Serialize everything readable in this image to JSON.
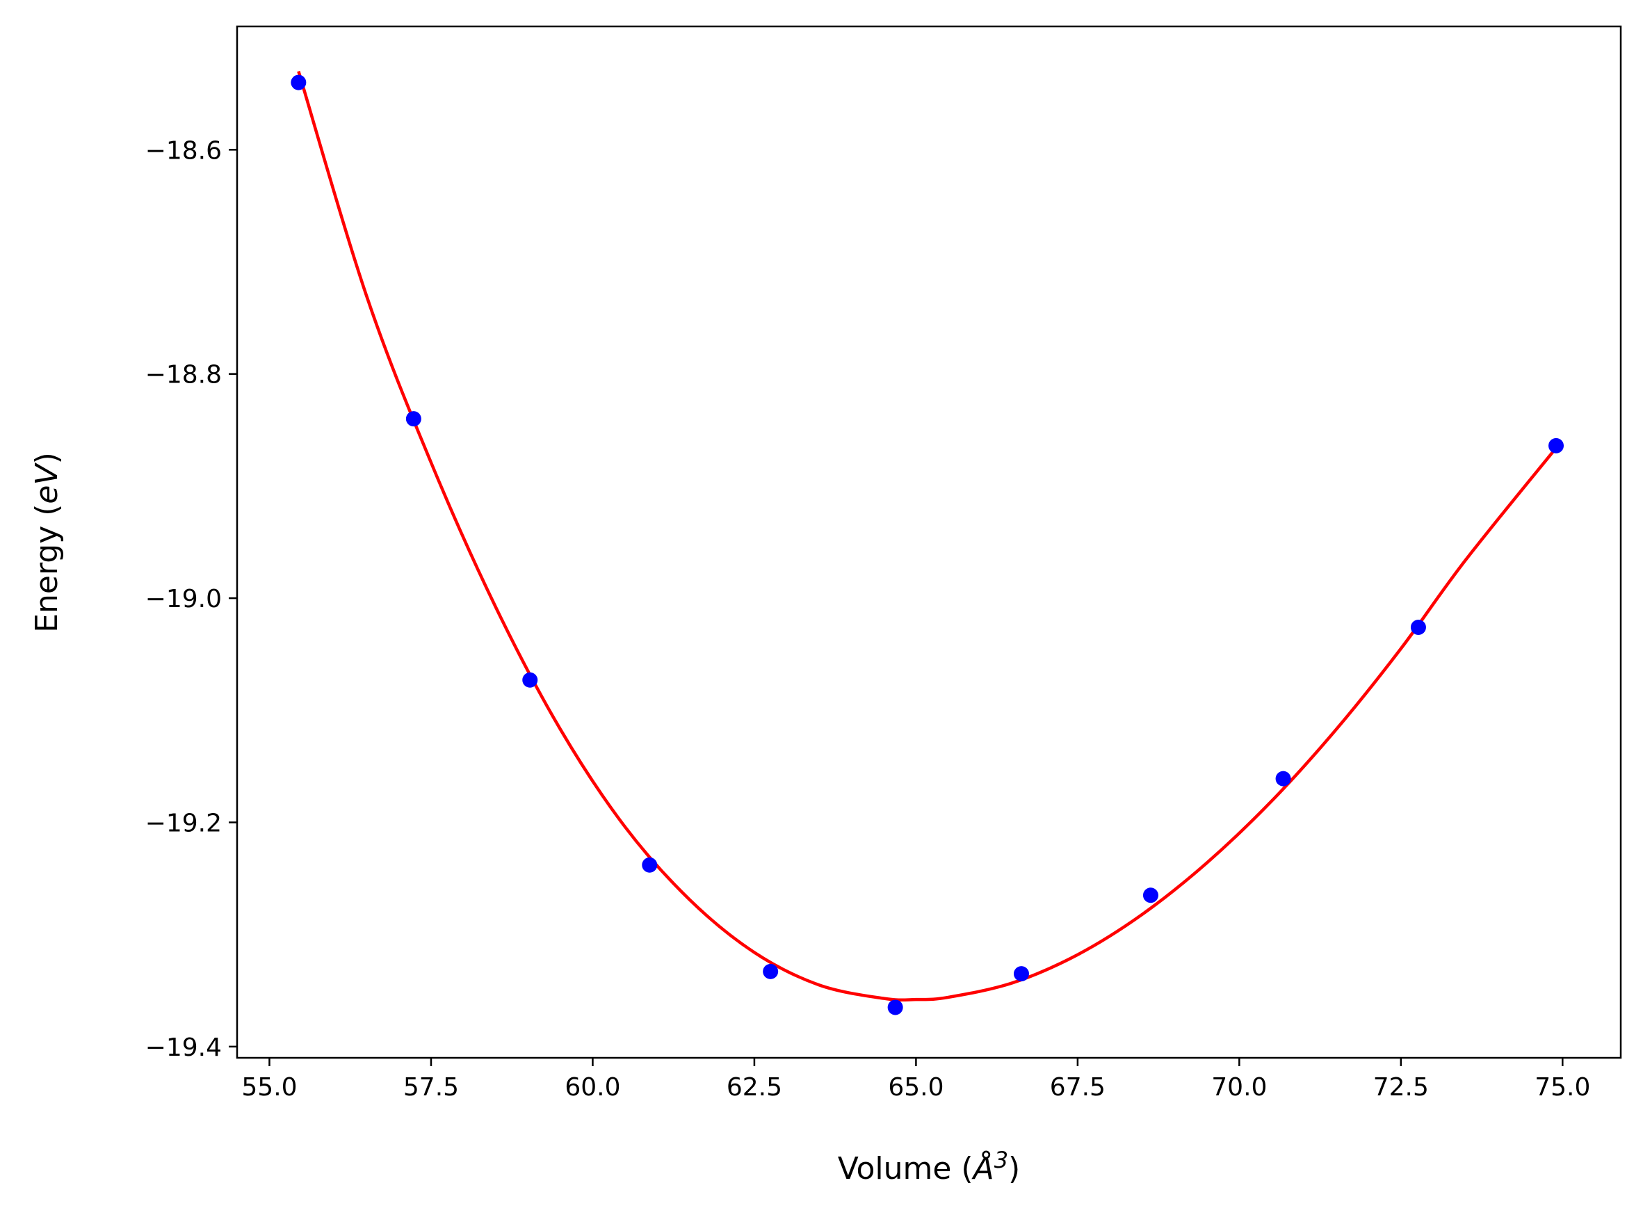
{
  "chart_data": {
    "type": "scatter",
    "title": "",
    "xlabel": {
      "pre": "Volume (",
      "math": "Å",
      "sup": "3",
      "post": ")"
    },
    "ylabel": {
      "pre": "Energy (",
      "math": "eV",
      "post": ")"
    },
    "xlim": [
      54.5,
      75.9
    ],
    "ylim": [
      -19.41,
      -18.49
    ],
    "xticks": [
      55.0,
      57.5,
      60.0,
      62.5,
      65.0,
      67.5,
      70.0,
      72.5,
      75.0
    ],
    "xtick_labels": [
      "55.0",
      "57.5",
      "60.0",
      "62.5",
      "65.0",
      "67.5",
      "70.0",
      "72.5",
      "75.0"
    ],
    "yticks": [
      -18.6,
      -18.8,
      -19.0,
      -19.2,
      -19.4
    ],
    "ytick_labels": [
      "−18.6",
      "−18.8",
      "−19.0",
      "−19.2",
      "−19.4"
    ],
    "grid": false,
    "series": [
      {
        "kind": "points",
        "color": "#0000ff",
        "x": [
          55.45,
          57.23,
          59.03,
          60.88,
          62.75,
          64.68,
          66.63,
          68.63,
          70.68,
          72.77,
          74.9
        ],
        "y": [
          -18.54,
          -18.84,
          -19.073,
          -19.238,
          -19.333,
          -19.365,
          -19.335,
          -19.265,
          -19.161,
          -19.026,
          -18.864
        ]
      },
      {
        "kind": "fit",
        "color": "#ff0000",
        "x": [
          55.45,
          56.5,
          57.5,
          58.5,
          59.5,
          60.5,
          61.5,
          62.5,
          63.5,
          64.5,
          65.0,
          65.5,
          66.5,
          67.5,
          68.5,
          69.5,
          70.5,
          71.5,
          72.5,
          73.5,
          74.9
        ],
        "y": [
          -18.53,
          -18.73,
          -18.879,
          -19.008,
          -19.117,
          -19.204,
          -19.269,
          -19.316,
          -19.345,
          -19.357,
          -19.358,
          -19.356,
          -19.343,
          -19.318,
          -19.282,
          -19.236,
          -19.181,
          -19.117,
          -19.045,
          -18.966,
          -18.866
        ]
      }
    ]
  }
}
